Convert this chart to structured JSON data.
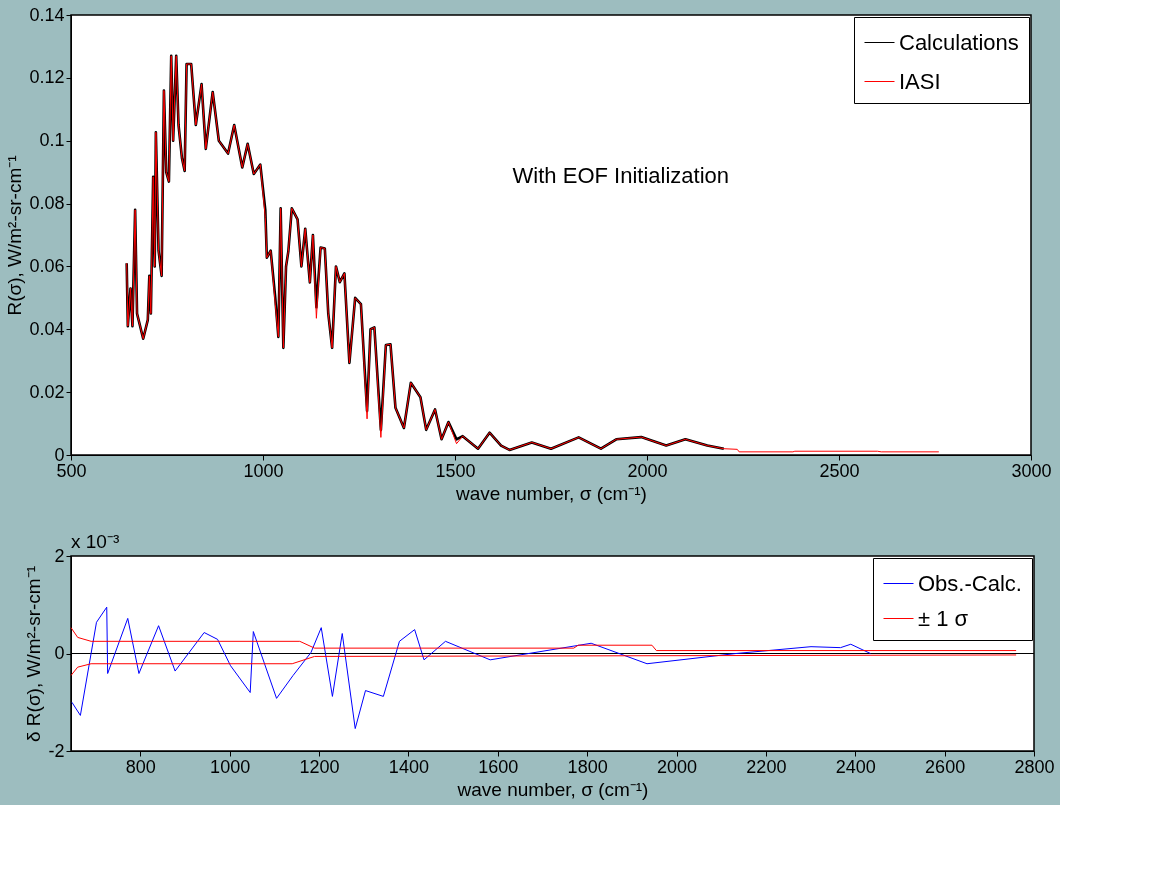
{
  "chart_data": [
    {
      "type": "line",
      "xlabel": "wave number, σ (cm⁻¹)",
      "ylabel": "R(σ), W/m²-sr-cm⁻¹",
      "annotations": [
        "With EOF Initialization"
      ],
      "xlim": [
        500,
        3000
      ],
      "xticks": [
        500,
        1000,
        1500,
        2000,
        2500,
        3000
      ],
      "ylim": [
        0,
        0.14
      ],
      "yticks": [
        0,
        0.02,
        0.04,
        0.06,
        0.08,
        0.1,
        0.12,
        0.14
      ],
      "grid": false,
      "legend": "top right",
      "line_style": "solid",
      "marker": "none",
      "x": [
        645,
        648,
        655,
        660,
        667,
        672,
        688,
        700,
        704,
        708,
        714,
        718,
        721,
        728,
        736,
        742,
        748,
        755,
        761,
        766,
        774,
        780,
        789,
        796,
        801,
        813,
        825,
        840,
        851,
        869,
        885,
        909,
        925,
        946,
        960,
        976,
        993,
        1006,
        1010,
        1020,
        1032,
        1040,
        1046,
        1053,
        1060,
        1066,
        1075,
        1090,
        1100,
        1110,
        1122,
        1130,
        1139,
        1150,
        1161,
        1170,
        1180,
        1190,
        1200,
        1212,
        1225,
        1240,
        1255,
        1271,
        1280,
        1290,
        1307,
        1320,
        1332,
        1345,
        1367,
        1385,
        1410,
        1425,
        1448,
        1465,
        1483,
        1504,
        1520,
        1560,
        1590,
        1620,
        1642,
        1700,
        1750,
        1822,
        1880,
        1920,
        1985,
        2050,
        2100,
        2157,
        2200,
        2235,
        2240,
        2380,
        2385,
        2600,
        2610,
        2760
      ],
      "series": [
        {
          "name": "Calculations",
          "color": "#000000",
          "values": [
            0.061,
            0.041,
            0.053,
            0.041,
            0.078,
            0.045,
            0.037,
            0.043,
            0.057,
            0.045,
            0.0885,
            0.06,
            0.1027,
            0.065,
            0.057,
            0.116,
            0.09,
            0.087,
            0.127,
            0.1,
            0.127,
            0.105,
            0.0944,
            0.0904,
            0.1244,
            0.1244,
            0.105,
            0.118,
            0.0974,
            0.1155,
            0.1,
            0.0959,
            0.105,
            0.0915,
            0.099,
            0.0894,
            0.0924,
            0.078,
            0.0628,
            0.065,
            0.05,
            0.0376,
            0.0785,
            0.0341,
            0.06,
            0.0648,
            0.0785,
            0.075,
            0.06,
            0.072,
            0.0549,
            0.07,
            0.047,
            0.066,
            0.0657,
            0.045,
            0.0341,
            0.06,
            0.055,
            0.0578,
            0.0293,
            0.05,
            0.048,
            0.014,
            0.04,
            0.0406,
            0.008,
            0.035,
            0.0352,
            0.015,
            0.0086,
            0.023,
            0.0184,
            0.008,
            0.0145,
            0.005,
            0.0105,
            0.005,
            0.006,
            0.002,
            0.0071,
            0.003,
            0.0016,
            0.004,
            0.002,
            0.0056,
            0.002,
            0.005,
            0.0057,
            0.003,
            0.005,
            0.003,
            0.002,
            null,
            null,
            null,
            null,
            null,
            null,
            null
          ]
        },
        {
          "name": "IASI",
          "color": "#ff0000",
          "values": [
            0.061,
            0.041,
            0.053,
            0.041,
            0.078,
            0.045,
            0.037,
            0.043,
            0.057,
            0.045,
            0.0885,
            0.06,
            0.1027,
            0.065,
            0.057,
            0.116,
            0.09,
            0.087,
            0.127,
            0.1,
            0.127,
            0.105,
            0.0944,
            0.0904,
            0.1244,
            0.1244,
            0.105,
            0.118,
            0.0974,
            0.1155,
            0.1,
            0.0959,
            0.105,
            0.0915,
            0.099,
            0.0894,
            0.0924,
            0.0756,
            0.0628,
            0.065,
            0.048,
            0.0376,
            0.0785,
            0.0341,
            0.06,
            0.0648,
            0.0785,
            0.075,
            0.06,
            0.072,
            0.0549,
            0.07,
            0.0435,
            0.066,
            0.0657,
            0.045,
            0.0341,
            0.06,
            0.055,
            0.0578,
            0.0293,
            0.05,
            0.048,
            0.0115,
            0.04,
            0.0406,
            0.0056,
            0.035,
            0.0352,
            0.015,
            0.0086,
            0.023,
            0.0184,
            0.008,
            0.0145,
            0.005,
            0.0105,
            0.0036,
            0.006,
            0.002,
            0.0071,
            0.003,
            0.0016,
            0.004,
            0.002,
            0.0056,
            0.002,
            0.005,
            0.0057,
            0.003,
            0.005,
            0.003,
            0.002,
            0.0018,
            0.001,
            0.001,
            0.0012,
            0.0012,
            0.001,
            0.001
          ]
        }
      ]
    },
    {
      "type": "line",
      "xlabel": "wave number, σ (cm⁻¹)",
      "ylabel": "δ R(σ), W/m²-sr-cm⁻¹",
      "annotations": [
        "x 10⁻³"
      ],
      "xlim": [
        645,
        2800
      ],
      "xticks": [
        800,
        1000,
        1200,
        1400,
        1600,
        1800,
        2000,
        2200,
        2400,
        2600,
        2800
      ],
      "ylim": [
        -2,
        2
      ],
      "yticks": [
        -2,
        0,
        2
      ],
      "grid": false,
      "legend": "top right",
      "line_style": "solid",
      "marker": "none",
      "ref_lines": [
        {
          "axis": "y",
          "value": 0,
          "color": "#000000"
        }
      ],
      "series": [
        {
          "name": "Obs.-Calc.",
          "color": "#0000ff",
          "x": [
            647,
            666,
            702,
            725,
            727,
            772,
            797,
            841,
            878,
            943,
            973,
            1002,
            1046,
            1053,
            1105,
            1142,
            1182,
            1205,
            1230,
            1252,
            1281,
            1304,
            1344,
            1380,
            1414,
            1435,
            1483,
            1583,
            1809,
            1934,
            2133,
            2301,
            2367,
            2390,
            2434
          ],
          "values": [
            -1.0,
            -1.27,
            0.64,
            0.95,
            -0.41,
            0.72,
            -0.41,
            0.57,
            -0.36,
            0.43,
            0.29,
            -0.25,
            -0.8,
            0.45,
            -0.92,
            -0.45,
            0.02,
            0.53,
            -0.88,
            0.41,
            -1.54,
            -0.76,
            -0.88,
            0.25,
            0.49,
            -0.13,
            0.25,
            -0.13,
            0.21,
            -0.21,
            0,
            0.14,
            0.12,
            0.19,
            0
          ]
        },
        {
          "name": "± 1 σ",
          "color": "#ff0000",
          "x": [
            645,
            660,
            690,
            1157,
            1190,
            1770,
            1780,
            1945,
            1955,
            2760
          ],
          "values": [
            0.53,
            0.33,
            0.25,
            0.25,
            0.11,
            0.11,
            0.17,
            0.17,
            0.06,
            0.06
          ]
        },
        {
          "color": "#ff0000",
          "x": [
            645,
            660,
            690,
            1140,
            1190,
            2760
          ],
          "values": [
            -0.45,
            -0.28,
            -0.21,
            -0.21,
            -0.06,
            -0.03
          ]
        }
      ]
    }
  ]
}
